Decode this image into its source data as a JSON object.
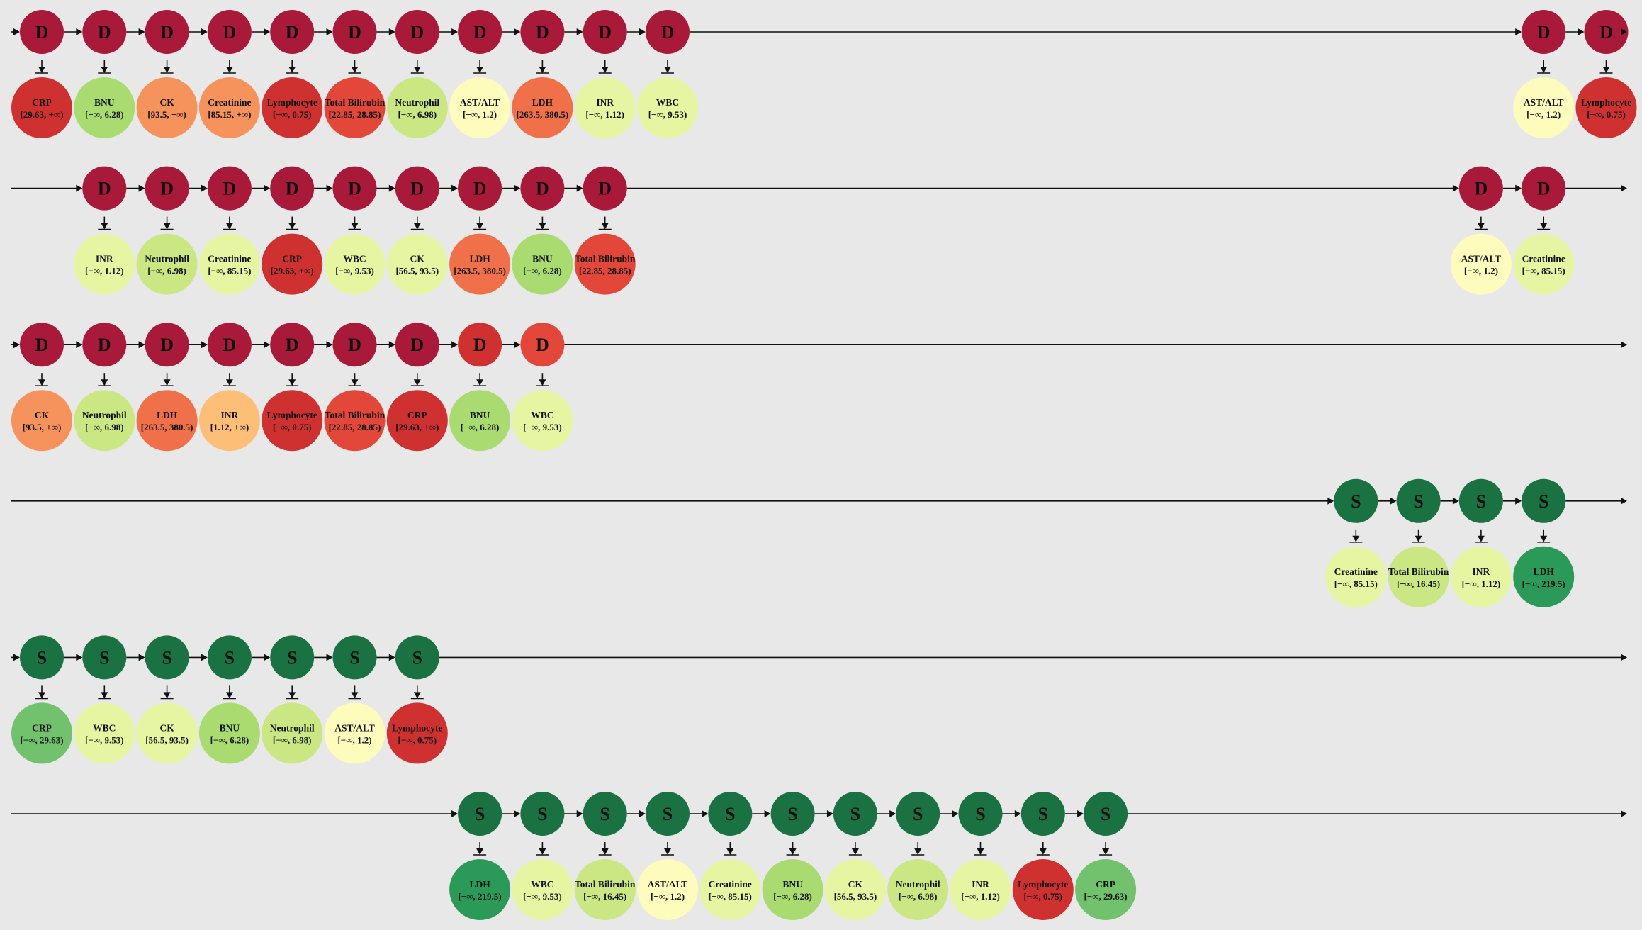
{
  "colors": {
    "background": "#e8e8e8",
    "line": "#111111",
    "D": "#a8193a",
    "S": "#1a7142",
    "red": "#cf3131",
    "redorange": "#e2473a",
    "orange": "#ef7049",
    "lightorange": "#f6925b",
    "peach": "#fdbf78",
    "paleyellow": "#fefcbd",
    "yellowgreen": "#e6f5a2",
    "lightgreen": "#cbe784",
    "green": "#aadb70",
    "midgreen": "#71c16d",
    "darkgreen": "#2b9a58"
  },
  "rows": [
    {
      "label": "D",
      "segments": [
        {
          "start": 0,
          "markers": [
            {
              "name": "CRP",
              "range": "[29.63, +∞)",
              "color": "red"
            },
            {
              "name": "BNU",
              "range": "[−∞, 6.28)",
              "color": "green"
            },
            {
              "name": "CK",
              "range": "[93.5, +∞)",
              "color": "lightorange"
            },
            {
              "name": "Creatinine",
              "range": "[85.15, +∞)",
              "color": "lightorange"
            },
            {
              "name": "Lymphocyte",
              "range": "[−∞, 0.75)",
              "color": "red"
            },
            {
              "name": "Total Bilirubin",
              "range": "[22.85, 28.85)",
              "color": "redorange"
            },
            {
              "name": "Neutrophil",
              "range": "[−∞, 6.98)",
              "color": "lightgreen"
            },
            {
              "name": "AST/ALT",
              "range": "[−∞, 1.2)",
              "color": "paleyellow"
            },
            {
              "name": "LDH",
              "range": "[263.5, 380.5)",
              "color": "orange"
            },
            {
              "name": "INR",
              "range": "[−∞, 1.12)",
              "color": "yellowgreen"
            },
            {
              "name": "WBC",
              "range": "[−∞, 9.53)",
              "color": "yellowgreen"
            }
          ]
        },
        {
          "start": 24,
          "markers": [
            {
              "name": "AST/ALT",
              "range": "[−∞, 1.2)",
              "color": "paleyellow"
            },
            {
              "name": "Lymphocyte",
              "range": "[−∞, 0.75)",
              "color": "red"
            }
          ]
        }
      ]
    },
    {
      "label": "D",
      "segments": [
        {
          "start": 1,
          "markers": [
            {
              "name": "INR",
              "range": "[−∞, 1.12)",
              "color": "yellowgreen"
            },
            {
              "name": "Neutrophil",
              "range": "[−∞, 6.98)",
              "color": "lightgreen"
            },
            {
              "name": "Creatinine",
              "range": "[−∞, 85.15)",
              "color": "yellowgreen"
            },
            {
              "name": "CRP",
              "range": "[29.63, +∞)",
              "color": "red"
            },
            {
              "name": "WBC",
              "range": "[−∞, 9.53)",
              "color": "yellowgreen"
            },
            {
              "name": "CK",
              "range": "[56.5, 93.5)",
              "color": "yellowgreen"
            },
            {
              "name": "LDH",
              "range": "[263.5, 380.5)",
              "color": "orange"
            },
            {
              "name": "BNU",
              "range": "[−∞, 6.28)",
              "color": "green"
            },
            {
              "name": "Total Bilirubin",
              "range": "[22.85, 28.85)",
              "color": "redorange"
            }
          ]
        },
        {
          "start": 23,
          "markers": [
            {
              "name": "AST/ALT",
              "range": "[−∞, 1.2)",
              "color": "paleyellow"
            },
            {
              "name": "Creatinine",
              "range": "[−∞, 85.15)",
              "color": "yellowgreen"
            }
          ]
        }
      ]
    },
    {
      "label": "D",
      "nodeColorOverrides": {
        "7": "red",
        "8": "redorange"
      },
      "segments": [
        {
          "start": 0,
          "markers": [
            {
              "name": "CK",
              "range": "[93.5, +∞)",
              "color": "lightorange"
            },
            {
              "name": "Neutrophil",
              "range": "[−∞, 6.98)",
              "color": "lightgreen"
            },
            {
              "name": "LDH",
              "range": "[263.5, 380.5)",
              "color": "orange"
            },
            {
              "name": "INR",
              "range": "[1.12, +∞)",
              "color": "peach"
            },
            {
              "name": "Lymphocyte",
              "range": "[−∞, 0.75)",
              "color": "red"
            },
            {
              "name": "Total Bilirubin",
              "range": "[22.85, 28.85)",
              "color": "redorange"
            },
            {
              "name": "CRP",
              "range": "[29.63, +∞)",
              "color": "red"
            },
            {
              "name": "BNU",
              "range": "[−∞, 6.28)",
              "color": "green"
            },
            {
              "name": "WBC",
              "range": "[−∞, 9.53)",
              "color": "yellowgreen"
            }
          ]
        }
      ]
    },
    {
      "label": "S",
      "segments": [
        {
          "start": 21,
          "markers": [
            {
              "name": "Creatinine",
              "range": "[−∞, 85.15)",
              "color": "yellowgreen"
            },
            {
              "name": "Total Bilirubin",
              "range": "[−∞, 16.45)",
              "color": "lightgreen"
            },
            {
              "name": "INR",
              "range": "[−∞, 1.12)",
              "color": "yellowgreen"
            },
            {
              "name": "LDH",
              "range": "[−∞, 219.5)",
              "color": "darkgreen"
            }
          ]
        }
      ]
    },
    {
      "label": "S",
      "segments": [
        {
          "start": 0,
          "markers": [
            {
              "name": "CRP",
              "range": "[−∞, 29.63)",
              "color": "midgreen"
            },
            {
              "name": "WBC",
              "range": "[−∞, 9.53)",
              "color": "yellowgreen"
            },
            {
              "name": "CK",
              "range": "[56.5, 93.5)",
              "color": "yellowgreen"
            },
            {
              "name": "BNU",
              "range": "[−∞, 6.28)",
              "color": "green"
            },
            {
              "name": "Neutrophil",
              "range": "[−∞, 6.98)",
              "color": "lightgreen"
            },
            {
              "name": "AST/ALT",
              "range": "[−∞, 1.2)",
              "color": "paleyellow"
            },
            {
              "name": "Lymphocyte",
              "range": "[−∞, 0.75)",
              "color": "red"
            }
          ]
        }
      ]
    },
    {
      "label": "S",
      "segments": [
        {
          "start": 7,
          "markers": [
            {
              "name": "LDH",
              "range": "[−∞, 219.5)",
              "color": "darkgreen"
            },
            {
              "name": "WBC",
              "range": "[−∞, 9.53)",
              "color": "yellowgreen"
            },
            {
              "name": "Total Bilirubin",
              "range": "[−∞, 16.45)",
              "color": "lightgreen"
            },
            {
              "name": "AST/ALT",
              "range": "[−∞, 1.2)",
              "color": "paleyellow"
            },
            {
              "name": "Creatinine",
              "range": "[−∞, 85.15)",
              "color": "yellowgreen"
            },
            {
              "name": "BNU",
              "range": "[−∞, 6.28)",
              "color": "green"
            },
            {
              "name": "CK",
              "range": "[56.5, 93.5)",
              "color": "yellowgreen"
            },
            {
              "name": "Neutrophil",
              "range": "[−∞, 6.98)",
              "color": "lightgreen"
            },
            {
              "name": "INR",
              "range": "[−∞, 1.12)",
              "color": "yellowgreen"
            },
            {
              "name": "Lymphocyte",
              "range": "[−∞, 0.75)",
              "color": "red"
            },
            {
              "name": "CRP",
              "range": "[−∞, 29.63)",
              "color": "midgreen"
            }
          ]
        }
      ]
    }
  ]
}
